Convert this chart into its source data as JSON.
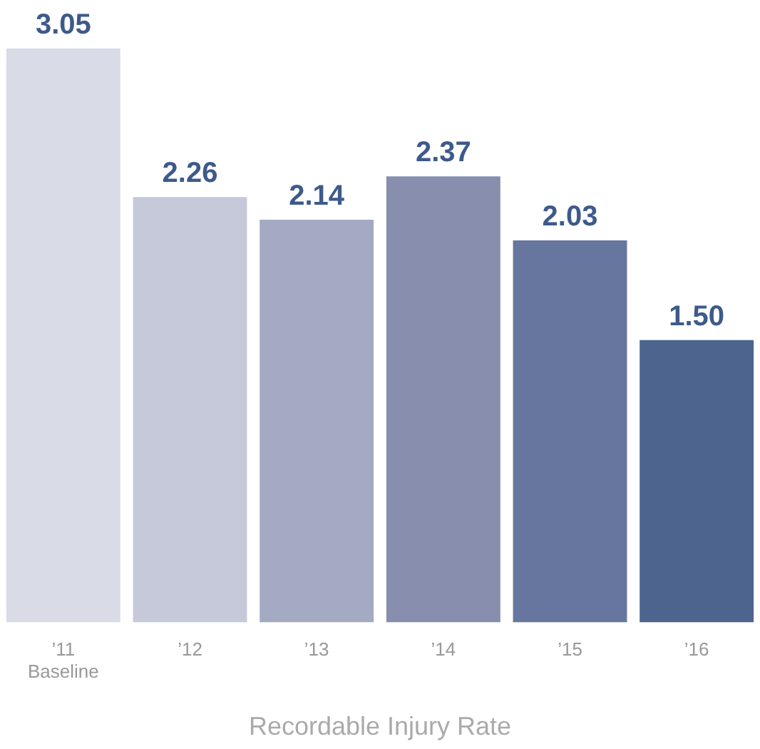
{
  "chart_data": {
    "type": "bar",
    "xlabel": "Recordable Injury Rate",
    "categories": [
      "’11\nBaseline",
      "’12",
      "’13",
      "’14",
      "’15",
      "’16"
    ],
    "values": [
      3.05,
      2.26,
      2.14,
      2.37,
      2.03,
      1.5
    ],
    "value_labels": [
      "3.05",
      "2.26",
      "2.14",
      "2.37",
      "2.03",
      "1.50"
    ],
    "colors": [
      "#d9dbe7",
      "#c5c9da",
      "#a5aac3",
      "#878eae",
      "#67769e",
      "#4d648f"
    ],
    "grid": false,
    "legend": false
  }
}
